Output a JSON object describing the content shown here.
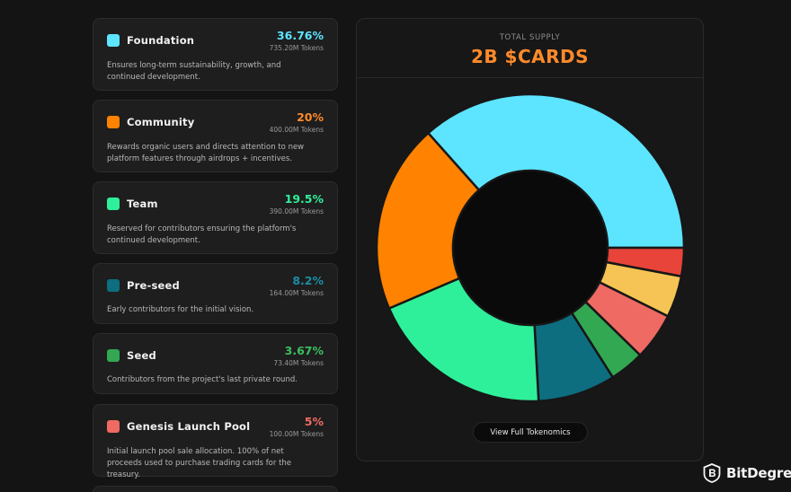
{
  "allocations": [
    {
      "name": "Foundation",
      "percent_label": "36.76%",
      "tokens": "735.20M Tokens",
      "description": "Ensures long-term sustainability, growth, and continued development.",
      "color": "#5de4ff",
      "icon": "square-swatch"
    },
    {
      "name": "Community",
      "percent_label": "20%",
      "tokens": "400.00M Tokens",
      "description": "Rewards organic users and directs attention to new platform features through airdrops + incentives.",
      "color": "#ff8200",
      "icon": "square-swatch"
    },
    {
      "name": "Team",
      "percent_label": "19.5%",
      "tokens": "390.00M Tokens",
      "description": "Reserved for contributors ensuring the platform's continued development.",
      "color": "#2ff09a",
      "icon": "square-swatch"
    },
    {
      "name": "Pre-seed",
      "percent_label": "8.2%",
      "tokens": "164.00M Tokens",
      "description": "Early contributors for the initial vision.",
      "color": "#0d6e80",
      "icon": "square-swatch"
    },
    {
      "name": "Seed",
      "percent_label": "3.67%",
      "tokens": "73.40M Tokens",
      "description": "Contributors from the project's last private round.",
      "color": "#33a852",
      "icon": "square-swatch"
    },
    {
      "name": "Genesis Launch Pool",
      "percent_label": "5%",
      "tokens": "100.00M Tokens",
      "description": "Initial launch pool sale allocation. 100% of net proceeds used to purchase trading cards for the treasury.",
      "color": "#ef6a62",
      "icon": "square-swatch"
    }
  ],
  "supply": {
    "label": "TOTAL SUPPLY",
    "value": "2B $CARDS"
  },
  "cta": {
    "label": "View Full Tokenomics"
  },
  "watermark": {
    "text": "BitDegree",
    "icon": "bitdegree-shield-logo"
  },
  "chart_data": {
    "type": "pie",
    "donut": true,
    "slices": [
      {
        "label": "Foundation",
        "value": 36.76,
        "color": "#5de4ff"
      },
      {
        "label": "",
        "value": 3.0,
        "color": "#e8443a"
      },
      {
        "label": "",
        "value": 4.4,
        "color": "#f5c454"
      },
      {
        "label": "Genesis Launch Pool",
        "value": 5.0,
        "color": "#ef6a62"
      },
      {
        "label": "Seed",
        "value": 3.67,
        "color": "#33a852"
      },
      {
        "label": "Pre-seed",
        "value": 8.2,
        "color": "#0d6e80"
      },
      {
        "label": "Team",
        "value": 19.5,
        "color": "#2ff09a"
      },
      {
        "label": "Community",
        "value": 20.0,
        "color": "#ff8200"
      }
    ],
    "start_direction": "left",
    "order": "clockwise"
  }
}
